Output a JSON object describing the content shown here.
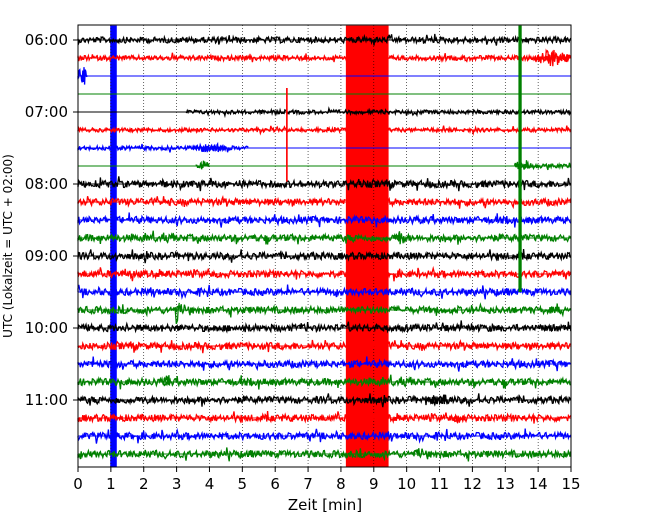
{
  "chart_data": {
    "type": "line",
    "title": "",
    "xlabel": "Zeit  [min]",
    "ylabel": "UTC (Lokalzeit = UTC + 02:00)",
    "xlim": [
      0,
      15
    ],
    "ylim_minutes": [
      0,
      360
    ],
    "x_ticks": [
      "0",
      "1",
      "2",
      "3",
      "4",
      "5",
      "6",
      "7",
      "8",
      "9",
      "10",
      "11",
      "12",
      "13",
      "14",
      "15"
    ],
    "y_ticks": [
      {
        "label": "06:00",
        "minutes": 0
      },
      {
        "label": "07:00",
        "minutes": 60
      },
      {
        "label": "08:00",
        "minutes": 120
      },
      {
        "label": "09:00",
        "minutes": 180
      },
      {
        "label": "10:00",
        "minutes": 240
      },
      {
        "label": "11:00",
        "minutes": 300
      }
    ],
    "grid": {
      "vertical_dotted": true
    },
    "color_cycle": [
      "#000000",
      "#ff0000",
      "#0000ff",
      "#008000"
    ],
    "traces": [
      {
        "minutes": 0,
        "color": "#000000",
        "amp": 3,
        "data_from": 0,
        "data_to": 15
      },
      {
        "minutes": 15,
        "color": "#ff0000",
        "amp": 2.5,
        "data_from": 0,
        "data_to": 15
      },
      {
        "minutes": 30,
        "color": "#0000ff",
        "amp": 0,
        "data_from": 6,
        "data_to": 8.2
      },
      {
        "minutes": 45,
        "color": "#008000",
        "amp": 0,
        "data_from": 0,
        "data_to": 0
      },
      {
        "minutes": 60,
        "color": "#000000",
        "amp": 2,
        "data_from": 3.3,
        "data_to": 15
      },
      {
        "minutes": 75,
        "color": "#ff0000",
        "amp": 2,
        "data_from": 0,
        "data_to": 15
      },
      {
        "minutes": 90,
        "color": "#0000ff",
        "amp": 2,
        "data_from": 0,
        "data_to": 5.2
      },
      {
        "minutes": 105,
        "color": "#008000",
        "amp": 2,
        "data_from": 13.3,
        "data_to": 15
      },
      {
        "minutes": 120,
        "color": "#000000",
        "amp": 3.5,
        "data_from": 0,
        "data_to": 15
      },
      {
        "minutes": 135,
        "color": "#ff0000",
        "amp": 3.5,
        "data_from": 0,
        "data_to": 15
      },
      {
        "minutes": 150,
        "color": "#0000ff",
        "amp": 3.5,
        "data_from": 0,
        "data_to": 15
      },
      {
        "minutes": 165,
        "color": "#008000",
        "amp": 3.5,
        "data_from": 0,
        "data_to": 15
      },
      {
        "minutes": 180,
        "color": "#000000",
        "amp": 3.5,
        "data_from": 0,
        "data_to": 15
      },
      {
        "minutes": 195,
        "color": "#ff0000",
        "amp": 3.5,
        "data_from": 0,
        "data_to": 15
      },
      {
        "minutes": 210,
        "color": "#0000ff",
        "amp": 3.5,
        "data_from": 0,
        "data_to": 15
      },
      {
        "minutes": 225,
        "color": "#008000",
        "amp": 3.5,
        "data_from": 0,
        "data_to": 15
      },
      {
        "minutes": 240,
        "color": "#000000",
        "amp": 3.5,
        "data_from": 0,
        "data_to": 15
      },
      {
        "minutes": 255,
        "color": "#ff0000",
        "amp": 3.5,
        "data_from": 0,
        "data_to": 15
      },
      {
        "minutes": 270,
        "color": "#0000ff",
        "amp": 3.5,
        "data_from": 0,
        "data_to": 15
      },
      {
        "minutes": 285,
        "color": "#008000",
        "amp": 3.5,
        "data_from": 0,
        "data_to": 15
      },
      {
        "minutes": 300,
        "color": "#000000",
        "amp": 3.5,
        "data_from": 0,
        "data_to": 15
      },
      {
        "minutes": 315,
        "color": "#ff0000",
        "amp": 3.5,
        "data_from": 0,
        "data_to": 15
      },
      {
        "minutes": 330,
        "color": "#0000ff",
        "amp": 3.5,
        "data_from": 0,
        "data_to": 15
      },
      {
        "minutes": 345,
        "color": "#008000",
        "amp": 3.5,
        "data_from": 0,
        "data_to": 15
      }
    ],
    "events": [
      {
        "name": "red-band",
        "color": "#ff0000",
        "x_from": 8.15,
        "x_to": 9.45,
        "y_from_minutes": -12,
        "y_to_minutes": 357
      },
      {
        "name": "blue-band",
        "color": "#0000ff",
        "x_from": 0.98,
        "x_to": 1.18,
        "y_from_minutes": -12,
        "y_to_minutes": 357
      },
      {
        "name": "green-spike",
        "color": "#008000",
        "x_from": 13.4,
        "x_to": 13.5,
        "y_from_minutes": -12,
        "y_to_minutes": 210
      },
      {
        "name": "red-spike",
        "color": "#ff0000",
        "x_from": 6.33,
        "x_to": 6.38,
        "y_from_minutes": 40,
        "y_to_minutes": 118
      }
    ],
    "bursts": [
      {
        "minutes": 15,
        "color": "#ff0000",
        "x_from": 13.9,
        "x_to": 15,
        "amp": 9
      },
      {
        "minutes": 30,
        "color": "#0000ff",
        "x_from": 0,
        "x_to": 0.3,
        "amp": 10
      },
      {
        "minutes": 90,
        "color": "#0000ff",
        "x_from": 3.5,
        "x_to": 4.5,
        "amp": 5
      },
      {
        "minutes": 105,
        "color": "#008000",
        "x_from": 3.6,
        "x_to": 4.0,
        "amp": 6
      },
      {
        "minutes": 105,
        "color": "#008000",
        "x_from": 13.3,
        "x_to": 13.8,
        "amp": 7
      },
      {
        "minutes": 165,
        "color": "#008000",
        "x_from": 9.6,
        "x_to": 10.0,
        "amp": 7
      },
      {
        "minutes": 225,
        "color": "#008000",
        "x_from": 2.9,
        "x_to": 3.1,
        "amp": 14
      },
      {
        "minutes": 285,
        "color": "#008000",
        "x_from": 2.6,
        "x_to": 2.8,
        "amp": 10
      },
      {
        "minutes": 300,
        "color": "#000000",
        "x_from": 10.6,
        "x_to": 11.4,
        "amp": 6
      },
      {
        "minutes": 315,
        "color": "#ff0000",
        "x_from": 11.4,
        "x_to": 11.8,
        "amp": 5
      }
    ]
  }
}
